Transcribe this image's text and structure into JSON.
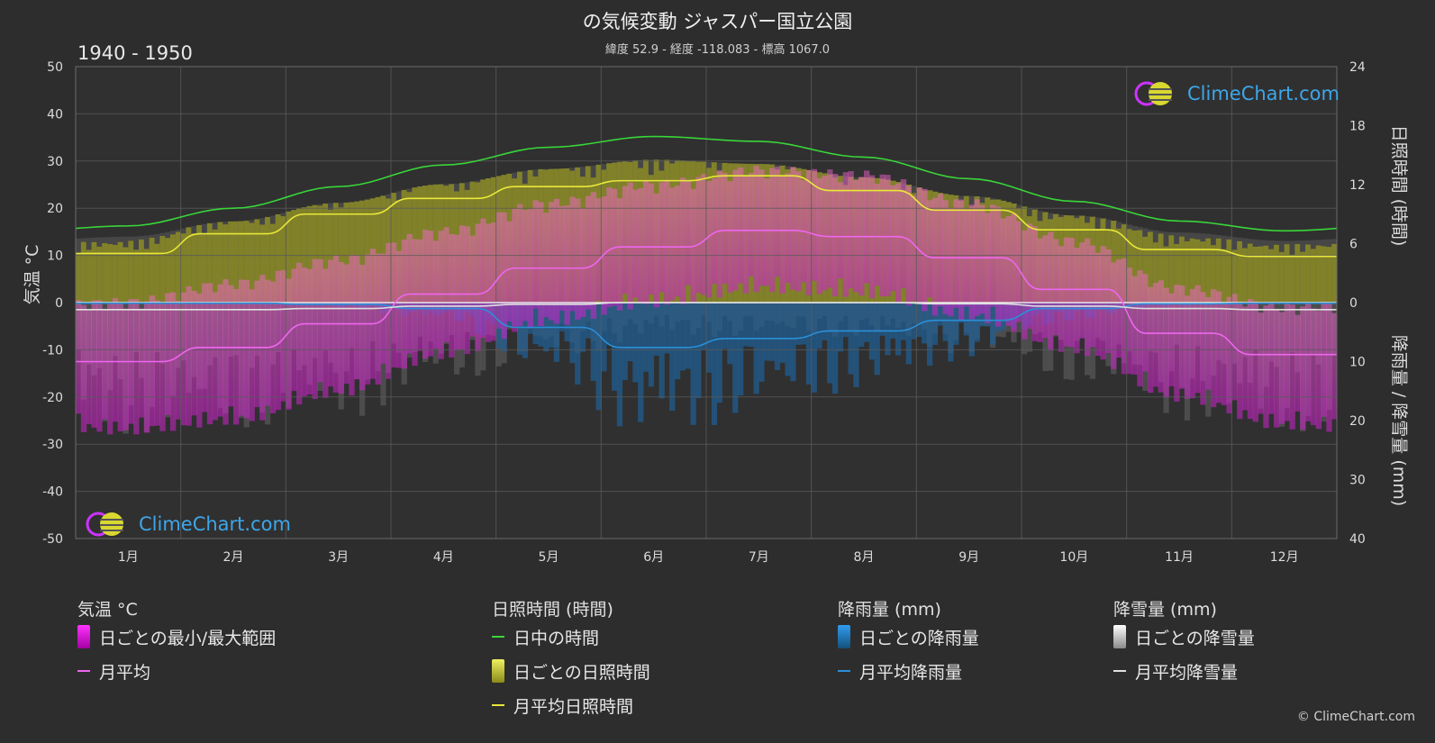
{
  "header": {
    "title": "の気候変動 ジャスパー国立公園",
    "subtitle": "緯度 52.9 - 経度 -118.083 - 標高 1067.0",
    "period": "1940 - 1950"
  },
  "brand": {
    "name": "ClimeChart.com",
    "copyright": "© ClimeChart.com"
  },
  "chart_data": {
    "type": "area",
    "months": [
      "1月",
      "2月",
      "3月",
      "4月",
      "5月",
      "6月",
      "7月",
      "8月",
      "9月",
      "10月",
      "11月",
      "12月"
    ],
    "axes": {
      "left": {
        "label": "気温 °C",
        "range": [
          -50,
          50
        ],
        "ticks": [
          50,
          40,
          30,
          20,
          10,
          0,
          -10,
          -20,
          -30,
          -40,
          -50
        ]
      },
      "right_top": {
        "label": "日照時間 (時間)",
        "range": [
          0,
          24
        ],
        "ticks": [
          24,
          18,
          12,
          6,
          0
        ]
      },
      "right_bottom": {
        "label": "降雨量 / 降雪量 (mm)",
        "range": [
          0,
          40
        ],
        "ticks": [
          10,
          20,
          30,
          40
        ]
      }
    },
    "series": [
      {
        "name": "日中の時間",
        "unit": "hours",
        "color": "#39d639",
        "values": [
          7.8,
          9.6,
          11.8,
          14.0,
          15.8,
          16.9,
          16.4,
          14.8,
          12.6,
          10.3,
          8.3,
          7.3
        ]
      },
      {
        "name": "月平均日照時間",
        "unit": "hours",
        "color": "#e8e83a",
        "values": [
          5.0,
          7.0,
          9.0,
          10.6,
          11.8,
          12.4,
          12.9,
          11.4,
          9.4,
          7.4,
          5.4,
          4.7
        ]
      },
      {
        "name": "月平均",
        "unit": "°C",
        "color": "#ee66ee",
        "values": [
          -12.5,
          -9.5,
          -4.5,
          1.8,
          7.3,
          11.8,
          15.3,
          14.0,
          9.5,
          2.8,
          -6.5,
          -11.0
        ]
      },
      {
        "name": "月平均降雨量",
        "unit": "mm",
        "color": "#2a8fd8",
        "values": [
          0.1,
          0.1,
          0.3,
          1.0,
          4.2,
          7.6,
          6.1,
          4.8,
          3.0,
          1.0,
          0.2,
          0.1
        ]
      },
      {
        "name": "月平均降雪量",
        "unit": "mm",
        "color": "#e0e0e0",
        "values": [
          1.2,
          1.2,
          1.0,
          0.6,
          0.3,
          0.0,
          0.0,
          0.0,
          0.2,
          0.6,
          1.0,
          1.2
        ]
      }
    ],
    "bands": [
      {
        "name": "日ごとの最小/最大範囲",
        "unit": "°C",
        "color": "#d040d0",
        "min": [
          -24,
          -22,
          -16,
          -8,
          -1,
          3,
          6,
          5,
          0,
          -7,
          -17,
          -23
        ],
        "max": [
          -2,
          2,
          7,
          13,
          19,
          23,
          26,
          25,
          19,
          11,
          1,
          -3
        ]
      },
      {
        "name": "日ごとの日照時間",
        "unit": "hours",
        "color": "#c8c832"
      },
      {
        "name": "日ごとの降雨量",
        "unit": "mm",
        "color": "#1f6fb0"
      },
      {
        "name": "日ごとの降雪量",
        "unit": "mm",
        "color": "#8a8a8a"
      }
    ]
  },
  "legend": [
    {
      "heading": "気温 °C",
      "items": [
        {
          "label": "日ごとの最小/最大範囲",
          "kind": "swatch",
          "style": "sw-temp"
        },
        {
          "label": "月平均",
          "kind": "line",
          "color": "#ee66ee"
        }
      ]
    },
    {
      "heading": "日照時間 (時間)",
      "items": [
        {
          "label": "日中の時間",
          "kind": "line",
          "color": "#39d639"
        },
        {
          "label": "日ごとの日照時間",
          "kind": "swatch",
          "style": "sw-sun"
        },
        {
          "label": "月平均日照時間",
          "kind": "line",
          "color": "#e8e83a"
        }
      ]
    },
    {
      "heading": "降雨量 (mm)",
      "items": [
        {
          "label": "日ごとの降雨量",
          "kind": "swatch",
          "style": "sw-rain"
        },
        {
          "label": "月平均降雨量",
          "kind": "line",
          "color": "#2a8fd8"
        }
      ]
    },
    {
      "heading": "降雪量 (mm)",
      "items": [
        {
          "label": "日ごとの降雪量",
          "kind": "swatch",
          "style": "sw-snow"
        },
        {
          "label": "月平均降雪量",
          "kind": "line",
          "color": "#e0e0e0"
        }
      ]
    }
  ]
}
